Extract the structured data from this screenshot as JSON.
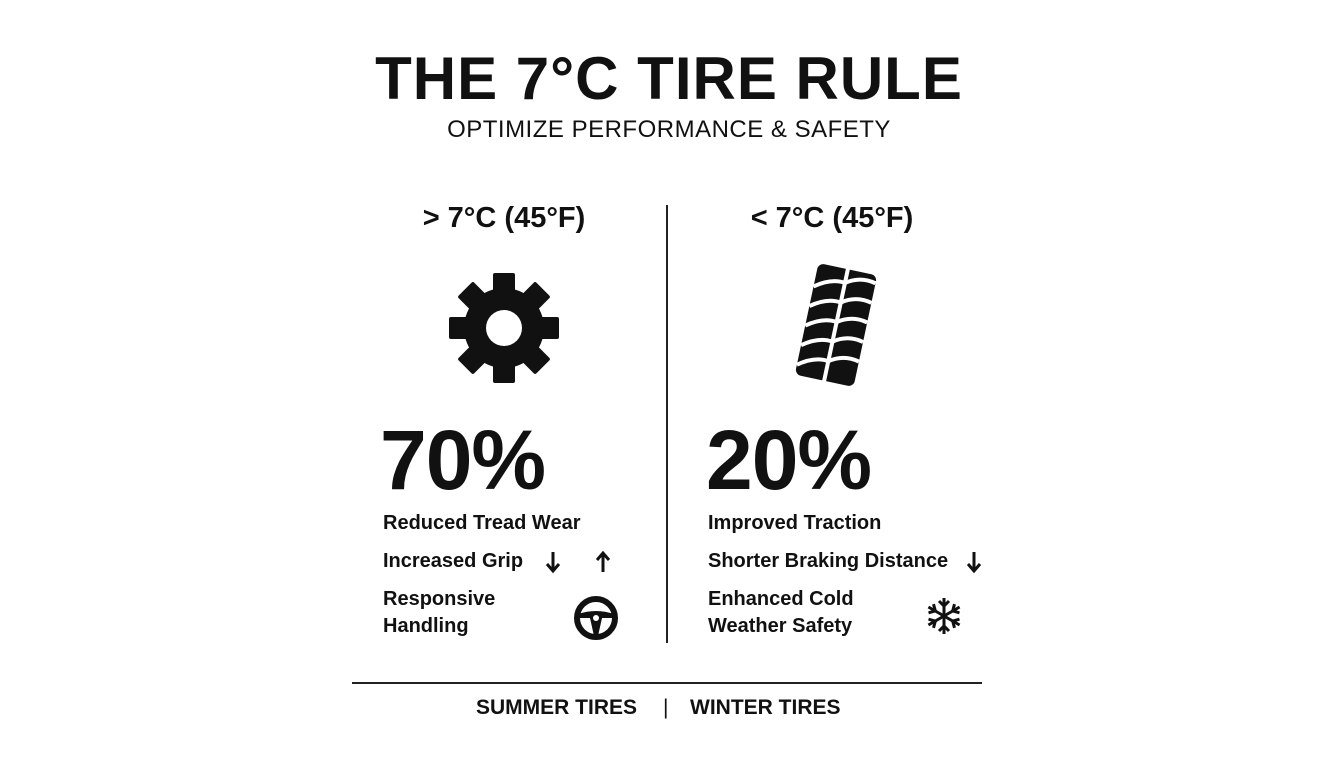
{
  "title": "THE 7°C TIRE RULE",
  "subtitle": "OPTIMIZE PERFORMANCE & SAFETY",
  "left": {
    "heading": "> 7°C (45°F)",
    "icon": "gear-icon",
    "percent": "70%",
    "items": [
      "Reduced Tread Wear",
      "Increased Grip",
      "Responsive",
      "Handling"
    ],
    "label": "SUMMER TIRES"
  },
  "right": {
    "heading": "< 7°C (45°F)",
    "icon": "tire-tread-icon",
    "percent": "20%",
    "items": [
      "Improved Traction",
      "Shorter Braking Distance",
      "Enhanced Cold",
      "Weather Safety"
    ],
    "label": "WINTER TIRES"
  },
  "footer_separator": "|"
}
